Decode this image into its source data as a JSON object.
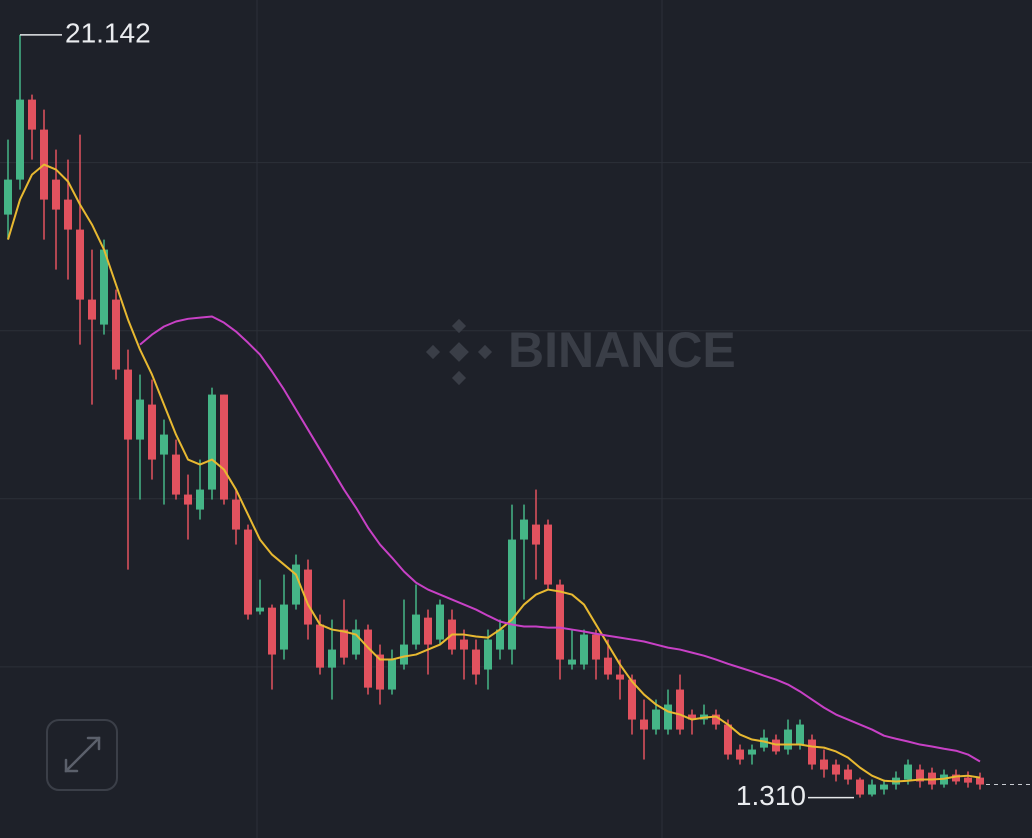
{
  "chart_data": {
    "type": "candlestick",
    "watermark": "BINANCE",
    "ylim": [
      22.05,
      0.26
    ],
    "yticks": [
      17.82,
      13.45,
      9.08,
      4.71
    ],
    "grid": true,
    "up_color": "#45b587",
    "down_color": "#e2525f",
    "open": [
      16.47,
      17.38,
      19.46,
      18.68,
      17.38,
      16.86,
      16.08,
      14.26,
      13.61,
      14.26,
      12.44,
      10.62,
      11.53,
      10.23,
      10.23,
      9.19,
      8.8,
      9.32,
      11.79,
      9.06,
      8.28,
      6.15,
      6.25,
      5.16,
      6.33,
      7.24,
      5.81,
      4.69,
      5.68,
      5.03,
      5.68,
      5.03,
      4.12,
      4.77,
      5.29,
      5.99,
      5.42,
      5.94,
      5.42,
      5.16,
      4.64,
      5.16,
      5.16,
      8.02,
      8.41,
      8.41,
      6.85,
      4.77,
      4.77,
      5.55,
      4.95,
      4.51,
      4.38,
      3.34,
      3.08,
      3.08,
      4.12,
      3.47,
      3.34,
      3.47,
      3.21,
      2.56,
      2.43,
      2.61,
      2.82,
      2.56,
      2.69,
      2.82,
      2.3,
      2.17,
      2.04,
      1.78,
      1.39,
      1.52,
      1.65,
      1.78,
      2.04,
      1.96,
      1.65,
      1.91,
      1.83,
      1.83
    ],
    "high": [
      18.42,
      21.142,
      19.59,
      19.2,
      18.16,
      17.9,
      18.55,
      15.56,
      15.82,
      14.52,
      12.96,
      12.31,
      12.18,
      11.14,
      10.62,
      9.71,
      10.1,
      11.97,
      11.79,
      9.32,
      8.41,
      6.98,
      6.33,
      7.11,
      7.63,
      7.5,
      6.07,
      5.94,
      6.46,
      5.94,
      5.81,
      5.29,
      5.16,
      6.46,
      6.85,
      6.2,
      6.46,
      6.2,
      5.68,
      5.42,
      5.68,
      5.94,
      8.93,
      8.93,
      9.32,
      8.54,
      6.98,
      5.68,
      5.68,
      5.68,
      5.42,
      4.9,
      4.51,
      3.86,
      3.86,
      4.12,
      4.51,
      3.6,
      3.73,
      3.6,
      3.34,
      2.69,
      2.69,
      3.08,
      2.95,
      3.34,
      3.34,
      2.95,
      2.56,
      2.3,
      2.17,
      1.83,
      1.78,
      1.78,
      1.99,
      2.3,
      2.17,
      2.09,
      2.04,
      2.04,
      1.99,
      1.96
    ],
    "low": [
      15.82,
      17.12,
      17.9,
      15.82,
      15.04,
      14.78,
      13.09,
      11.53,
      13.35,
      12.18,
      7.24,
      9.06,
      9.58,
      8.93,
      9.06,
      8.02,
      8.54,
      9.06,
      8.93,
      7.89,
      5.94,
      6.07,
      4.12,
      4.9,
      6.2,
      5.42,
      4.51,
      3.86,
      4.77,
      4.9,
      3.99,
      3.73,
      3.99,
      4.64,
      5.16,
      4.51,
      5.29,
      5.03,
      4.38,
      4.25,
      4.12,
      4.9,
      4.77,
      6.46,
      6.98,
      6.72,
      4.38,
      4.64,
      4.64,
      4.38,
      4.38,
      3.86,
      2.95,
      2.3,
      2.95,
      2.95,
      2.95,
      2.95,
      3.21,
      3.08,
      2.3,
      2.17,
      2.17,
      2.51,
      2.43,
      2.43,
      2.56,
      2.04,
      1.83,
      1.73,
      1.65,
      1.31,
      1.34,
      1.39,
      1.52,
      1.65,
      1.57,
      1.52,
      1.57,
      1.65,
      1.57,
      1.52
    ],
    "close": [
      17.38,
      19.46,
      18.68,
      16.86,
      16.6,
      16.08,
      14.26,
      13.74,
      15.56,
      12.44,
      10.62,
      11.66,
      10.1,
      10.75,
      9.19,
      8.93,
      9.32,
      11.79,
      9.06,
      8.28,
      6.07,
      6.25,
      5.03,
      6.33,
      7.37,
      5.81,
      4.69,
      5.16,
      4.95,
      5.68,
      4.17,
      4.12,
      4.9,
      5.29,
      6.07,
      5.29,
      6.33,
      5.16,
      5.16,
      4.51,
      5.42,
      5.68,
      8.02,
      8.54,
      7.89,
      6.85,
      4.9,
      4.9,
      5.55,
      4.9,
      4.51,
      4.38,
      3.34,
      3.08,
      3.6,
      3.73,
      3.08,
      3.34,
      3.47,
      3.21,
      2.43,
      2.3,
      2.56,
      2.87,
      2.51,
      3.08,
      3.21,
      2.17,
      2.04,
      1.91,
      1.78,
      1.39,
      1.65,
      1.65,
      1.83,
      2.17,
      1.73,
      1.65,
      1.91,
      1.73,
      1.7,
      1.65
    ],
    "series": [
      {
        "color": "#e8b931",
        "values": [
          15.82,
          16.86,
          17.51,
          17.77,
          17.64,
          17.33,
          16.73,
          16.21,
          15.56,
          14.65,
          13.74,
          12.96,
          12.31,
          11.53,
          10.75,
          10.1,
          9.97,
          10.1,
          9.84,
          9.32,
          8.67,
          8.02,
          7.63,
          7.37,
          7.11,
          6.33,
          5.81,
          5.68,
          5.63,
          5.55,
          5.21,
          4.9,
          4.9,
          4.98,
          5.03,
          5.16,
          5.29,
          5.55,
          5.55,
          5.5,
          5.47,
          5.68,
          5.94,
          6.33,
          6.59,
          6.72,
          6.67,
          6.59,
          6.33,
          5.81,
          5.29,
          4.77,
          4.33,
          3.99,
          3.73,
          3.55,
          3.47,
          3.34,
          3.39,
          3.42,
          3.21,
          2.95,
          2.82,
          2.77,
          2.69,
          2.69,
          2.69,
          2.64,
          2.61,
          2.51,
          2.35,
          2.09,
          1.88,
          1.75,
          1.73,
          1.75,
          1.78,
          1.78,
          1.8,
          1.86,
          1.88,
          1.83
        ]
      },
      {
        "color": "#c841c6",
        "values": [
          null,
          null,
          null,
          null,
          null,
          null,
          null,
          null,
          null,
          null,
          null,
          13.09,
          13.35,
          13.56,
          13.69,
          13.76,
          13.79,
          13.82,
          13.66,
          13.43,
          13.14,
          12.83,
          12.39,
          11.92,
          11.4,
          10.88,
          10.36,
          9.84,
          9.32,
          8.85,
          8.33,
          7.89,
          7.55,
          7.19,
          6.9,
          6.72,
          6.59,
          6.46,
          6.33,
          6.2,
          6.04,
          5.89,
          5.81,
          5.76,
          5.76,
          5.73,
          5.73,
          5.68,
          5.63,
          5.57,
          5.52,
          5.47,
          5.42,
          5.37,
          5.29,
          5.21,
          5.16,
          5.08,
          5.0,
          4.9,
          4.79,
          4.69,
          4.59,
          4.48,
          4.38,
          4.25,
          4.07,
          3.86,
          3.65,
          3.47,
          3.34,
          3.21,
          3.08,
          2.92,
          2.84,
          2.77,
          2.69,
          2.64,
          2.58,
          2.53,
          2.43,
          2.25
        ]
      }
    ],
    "high_label": 21.142,
    "low_label": {
      "value": 1.31,
      "label": "1.310"
    }
  }
}
